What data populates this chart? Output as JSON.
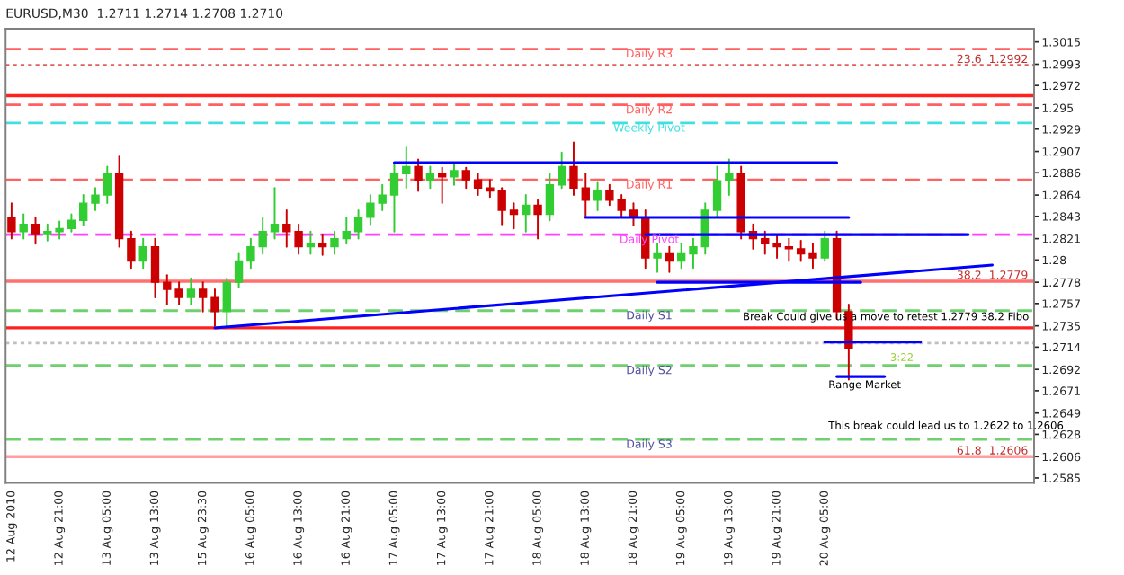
{
  "chart_data": {
    "type": "candlestick",
    "title": "EURUSD,M30  1.2711 1.2714 1.2708 1.2710",
    "categories": [
      "12 Aug 2010",
      null,
      null,
      null,
      "12 Aug 21:00",
      null,
      null,
      null,
      "13 Aug 05:00",
      null,
      null,
      null,
      "13 Aug 13:00",
      null,
      null,
      null,
      "15 Aug 23:30",
      null,
      null,
      null,
      "16 Aug 05:00",
      null,
      null,
      null,
      "16 Aug 13:00",
      null,
      null,
      null,
      "16 Aug 21:00",
      null,
      null,
      null,
      "17 Aug 05:00",
      null,
      null,
      null,
      "17 Aug 13:00",
      null,
      null,
      null,
      "17 Aug 21:00",
      null,
      null,
      null,
      "18 Aug 05:00",
      null,
      null,
      null,
      "18 Aug 13:00",
      null,
      null,
      null,
      "18 Aug 21:00",
      null,
      null,
      null,
      "19 Aug 05:00",
      null,
      null,
      null,
      "19 Aug 13:00",
      null,
      null,
      null,
      "19 Aug 21:00",
      null,
      null,
      null,
      "20 Aug 05:00",
      null,
      null,
      null,
      null,
      null,
      null,
      null,
      null,
      null,
      null,
      null,
      null,
      null,
      null,
      null,
      null,
      null
    ],
    "ohlc": [
      [
        1.2842,
        1.2856,
        1.2821,
        1.2828
      ],
      [
        1.2828,
        1.2845,
        1.2821,
        1.2835
      ],
      [
        1.2835,
        1.2842,
        1.2816,
        1.2825
      ],
      [
        1.2825,
        1.2835,
        1.2819,
        1.2828
      ],
      [
        1.2828,
        1.2838,
        1.2821,
        1.2831
      ],
      [
        1.2831,
        1.2845,
        1.2828,
        1.2839
      ],
      [
        1.2839,
        1.2864,
        1.2834,
        1.2856
      ],
      [
        1.2856,
        1.2871,
        1.2849,
        1.2864
      ],
      [
        1.2864,
        1.2892,
        1.2856,
        1.2885
      ],
      [
        1.2885,
        1.2902,
        1.2813,
        1.2821
      ],
      [
        1.2821,
        1.2828,
        1.2792,
        1.2799
      ],
      [
        1.2799,
        1.2821,
        1.2792,
        1.2813
      ],
      [
        1.2813,
        1.2821,
        1.2763,
        1.2778
      ],
      [
        1.2778,
        1.2785,
        1.2756,
        1.2771
      ],
      [
        1.2771,
        1.2778,
        1.2756,
        1.2763
      ],
      [
        1.2763,
        1.2782,
        1.2756,
        1.2771
      ],
      [
        1.2771,
        1.2778,
        1.2749,
        1.2763
      ],
      [
        1.2763,
        1.2771,
        1.2735,
        1.2749
      ],
      [
        1.2749,
        1.2782,
        1.2735,
        1.2778
      ],
      [
        1.2778,
        1.2806,
        1.2773,
        1.2799
      ],
      [
        1.2799,
        1.2821,
        1.2792,
        1.2813
      ],
      [
        1.2813,
        1.2842,
        1.2806,
        1.2828
      ],
      [
        1.2828,
        1.2871,
        1.2821,
        1.2835
      ],
      [
        1.2835,
        1.2849,
        1.2813,
        1.2828
      ],
      [
        1.2828,
        1.2835,
        1.2806,
        1.2813
      ],
      [
        1.2813,
        1.2828,
        1.2806,
        1.2816
      ],
      [
        1.2816,
        1.2825,
        1.2805,
        1.2813
      ],
      [
        1.2813,
        1.2828,
        1.2806,
        1.2821
      ],
      [
        1.2821,
        1.2842,
        1.2816,
        1.2828
      ],
      [
        1.2828,
        1.2849,
        1.2821,
        1.2842
      ],
      [
        1.2842,
        1.2864,
        1.2835,
        1.2856
      ],
      [
        1.2856,
        1.2874,
        1.2849,
        1.2864
      ],
      [
        1.2864,
        1.2896,
        1.2828,
        1.2885
      ],
      [
        1.2885,
        1.2911,
        1.2871,
        1.2892
      ],
      [
        1.2892,
        1.2899,
        1.2868,
        1.2878
      ],
      [
        1.2878,
        1.2892,
        1.2871,
        1.2885
      ],
      [
        1.2885,
        1.2891,
        1.2856,
        1.2882
      ],
      [
        1.2882,
        1.2894,
        1.2874,
        1.2888
      ],
      [
        1.2888,
        1.2891,
        1.2871,
        1.2879
      ],
      [
        1.2879,
        1.2885,
        1.2864,
        1.2871
      ],
      [
        1.2871,
        1.2879,
        1.2862,
        1.2868
      ],
      [
        1.2868,
        1.2871,
        1.2835,
        1.2849
      ],
      [
        1.2849,
        1.2856,
        1.2831,
        1.2845
      ],
      [
        1.2845,
        1.2864,
        1.2828,
        1.2854
      ],
      [
        1.2854,
        1.2859,
        1.2821,
        1.2845
      ],
      [
        1.2845,
        1.2885,
        1.2839,
        1.2874
      ],
      [
        1.2874,
        1.2906,
        1.2871,
        1.2892
      ],
      [
        1.2892,
        1.2916,
        1.2864,
        1.2871
      ],
      [
        1.2871,
        1.2885,
        1.2842,
        1.2859
      ],
      [
        1.2859,
        1.2876,
        1.2849,
        1.2868
      ],
      [
        1.2868,
        1.2874,
        1.2854,
        1.2859
      ],
      [
        1.2859,
        1.2864,
        1.2842,
        1.2849
      ],
      [
        1.2849,
        1.2856,
        1.2834,
        1.2842
      ],
      [
        1.2842,
        1.2849,
        1.2792,
        1.2802
      ],
      [
        1.2802,
        1.2816,
        1.2788,
        1.2806
      ],
      [
        1.2806,
        1.2813,
        1.2788,
        1.2799
      ],
      [
        1.2799,
        1.2816,
        1.2792,
        1.2806
      ],
      [
        1.2806,
        1.2821,
        1.2792,
        1.2813
      ],
      [
        1.2813,
        1.2856,
        1.2806,
        1.2849
      ],
      [
        1.2849,
        1.2892,
        1.2842,
        1.2878
      ],
      [
        1.2878,
        1.2899,
        1.2864,
        1.2885
      ],
      [
        1.2885,
        1.2892,
        1.2821,
        1.2828
      ],
      [
        1.2828,
        1.2835,
        1.2811,
        1.2821
      ],
      [
        1.2821,
        1.2828,
        1.2806,
        1.2816
      ],
      [
        1.2816,
        1.2825,
        1.2802,
        1.2813
      ],
      [
        1.2813,
        1.2821,
        1.2799,
        1.2811
      ],
      [
        1.2811,
        1.2819,
        1.2799,
        1.2806
      ],
      [
        1.2806,
        1.2816,
        1.2792,
        1.2802
      ],
      [
        1.2802,
        1.2828,
        1.2799,
        1.2821
      ],
      [
        1.2821,
        1.2828,
        1.2742,
        1.2749
      ],
      [
        1.2749,
        1.2756,
        1.2682,
        1.2713
      ],
      null,
      null,
      null,
      null,
      null,
      null,
      null,
      null,
      null,
      null,
      null,
      null,
      null,
      null,
      null
    ],
    "colors": [
      "#cc0000",
      "#32cd32",
      "#cc0000",
      "#32cd32",
      "#32cd32",
      "#32cd32",
      "#32cd32",
      "#32cd32",
      "#32cd32",
      "#cc0000",
      "#cc0000",
      "#32cd32",
      "#cc0000",
      "#cc0000",
      "#cc0000",
      "#32cd32",
      "#cc0000",
      "#cc0000",
      "#32cd32",
      "#32cd32",
      "#32cd32",
      "#32cd32",
      "#32cd32",
      "#cc0000",
      "#cc0000",
      "#32cd32",
      "#cc0000",
      "#32cd32",
      "#32cd32",
      "#32cd32",
      "#32cd32",
      "#32cd32",
      "#32cd32",
      "#32cd32",
      "#cc0000",
      "#32cd32",
      "#cc0000",
      "#32cd32",
      "#cc0000",
      "#cc0000",
      "#cc0000",
      "#cc0000",
      "#cc0000",
      "#32cd32",
      "#cc0000",
      "#32cd32",
      "#32cd32",
      "#cc0000",
      "#cc0000",
      "#32cd32",
      "#cc0000",
      "#cc0000",
      "#cc0000",
      "#cc0000",
      "#32cd32",
      "#cc0000",
      "#32cd32",
      "#32cd32",
      "#32cd32",
      "#32cd32",
      "#32cd32",
      "#cc0000",
      "#cc0000",
      "#cc0000",
      "#cc0000",
      "#cc0000",
      "#cc0000",
      "#cc0000",
      "#32cd32",
      "#cc0000",
      "#cc0000",
      null,
      null,
      null,
      null,
      null,
      null,
      null,
      null,
      null,
      null,
      null,
      null,
      null,
      null,
      null
    ],
    "series": [
      {
        "type": "line",
        "color": "#0000ff",
        "values": [
          null,
          null,
          null,
          null,
          null,
          null,
          null,
          null,
          null,
          null,
          null,
          null,
          null,
          null,
          null,
          null,
          null,
          null,
          null,
          null,
          null,
          null,
          null,
          null,
          null,
          null,
          null,
          null,
          null,
          null,
          null,
          null,
          1.2896,
          null,
          null,
          null,
          null,
          null,
          null,
          null,
          null,
          null,
          null,
          null,
          null,
          null,
          null,
          null,
          null,
          null,
          null,
          null,
          null,
          null,
          null,
          null,
          null,
          null,
          null,
          null,
          null,
          null,
          null,
          null,
          null,
          null,
          null,
          null,
          null,
          1.2896,
          null,
          null,
          null,
          null,
          null,
          null,
          null,
          null,
          null,
          null,
          null,
          null,
          null,
          null,
          null,
          null
        ]
      },
      {
        "type": "line",
        "color": "#0000ff",
        "values": [
          null,
          null,
          null,
          null,
          null,
          null,
          null,
          null,
          null,
          null,
          null,
          null,
          null,
          null,
          null,
          null,
          null,
          null,
          null,
          null,
          null,
          null,
          null,
          null,
          null,
          null,
          null,
          null,
          null,
          null,
          null,
          null,
          null,
          null,
          null,
          null,
          null,
          null,
          null,
          null,
          null,
          null,
          null,
          null,
          null,
          null,
          null,
          null,
          1.2842,
          null,
          null,
          null,
          null,
          null,
          null,
          null,
          null,
          null,
          null,
          null,
          null,
          null,
          null,
          null,
          null,
          null,
          null,
          null,
          null,
          null,
          1.2842,
          null,
          null,
          null,
          null,
          null,
          null,
          null,
          null,
          null,
          null,
          null,
          null,
          null,
          null,
          null
        ]
      },
      {
        "type": "line",
        "color": "#0000ff",
        "values": [
          null,
          null,
          null,
          null,
          null,
          null,
          null,
          null,
          null,
          null,
          null,
          null,
          null,
          null,
          null,
          null,
          null,
          null,
          null,
          null,
          null,
          null,
          null,
          null,
          null,
          null,
          null,
          null,
          null,
          null,
          null,
          null,
          null,
          null,
          null,
          null,
          null,
          null,
          null,
          null,
          null,
          null,
          null,
          null,
          null,
          null,
          null,
          null,
          null,
          null,
          null,
          null,
          null,
          1.2825,
          null,
          null,
          null,
          null,
          null,
          null,
          null,
          null,
          null,
          null,
          null,
          null,
          null,
          null,
          null,
          null,
          null,
          null,
          null,
          null,
          null,
          null,
          null,
          null,
          null,
          null,
          1.2825,
          null,
          null,
          null,
          null,
          null
        ]
      },
      {
        "type": "line",
        "color": "#0000ff",
        "values": [
          null,
          null,
          null,
          null,
          null,
          null,
          null,
          null,
          null,
          null,
          null,
          null,
          null,
          null,
          null,
          null,
          null,
          null,
          null,
          null,
          null,
          null,
          null,
          null,
          null,
          null,
          null,
          null,
          null,
          null,
          null,
          null,
          null,
          null,
          null,
          null,
          null,
          null,
          null,
          null,
          null,
          null,
          null,
          null,
          null,
          null,
          null,
          null,
          null,
          null,
          null,
          null,
          null,
          null,
          1.2778,
          null,
          null,
          null,
          null,
          null,
          null,
          null,
          null,
          null,
          null,
          null,
          null,
          null,
          null,
          null,
          null,
          1.2778,
          null,
          null,
          null,
          null,
          null,
          null,
          null,
          null,
          null,
          null,
          null,
          null,
          null,
          null
        ]
      },
      {
        "type": "line",
        "color": "#0000ff",
        "values": [
          null,
          null,
          null,
          null,
          null,
          null,
          null,
          null,
          null,
          null,
          null,
          null,
          null,
          null,
          null,
          null,
          null,
          null,
          null,
          null,
          null,
          null,
          null,
          null,
          null,
          null,
          null,
          null,
          null,
          null,
          null,
          null,
          null,
          null,
          null,
          null,
          null,
          null,
          null,
          null,
          null,
          null,
          null,
          null,
          null,
          null,
          null,
          null,
          null,
          null,
          null,
          null,
          null,
          null,
          null,
          null,
          null,
          null,
          null,
          null,
          null,
          null,
          null,
          null,
          null,
          null,
          null,
          null,
          1.2719,
          null,
          null,
          null,
          null,
          null,
          null,
          null,
          1.2719,
          null,
          null,
          null,
          null,
          null,
          null,
          null,
          null,
          null
        ]
      },
      {
        "type": "line",
        "color": "#0000ff",
        "values": [
          null,
          null,
          null,
          null,
          null,
          null,
          null,
          null,
          null,
          null,
          null,
          null,
          null,
          null,
          null,
          null,
          null,
          null,
          null,
          null,
          null,
          null,
          null,
          null,
          null,
          null,
          null,
          null,
          null,
          null,
          null,
          null,
          null,
          null,
          null,
          null,
          null,
          null,
          null,
          null,
          null,
          null,
          null,
          null,
          null,
          null,
          null,
          null,
          null,
          null,
          null,
          null,
          null,
          null,
          null,
          null,
          null,
          null,
          null,
          null,
          null,
          null,
          null,
          null,
          null,
          null,
          null,
          null,
          null,
          1.2685,
          null,
          null,
          null,
          1.2685,
          null,
          null,
          null,
          null,
          null,
          null,
          null,
          null,
          null,
          null,
          null,
          null
        ]
      },
      {
        "type": "line",
        "color": "#0000ff",
        "values": [
          null,
          null,
          null,
          null,
          null,
          null,
          null,
          null,
          null,
          null,
          null,
          null,
          null,
          null,
          null,
          null,
          null,
          1.2733,
          null,
          null,
          null,
          null,
          null,
          null,
          null,
          null,
          null,
          null,
          null,
          null,
          null,
          null,
          null,
          null,
          null,
          null,
          null,
          null,
          null,
          null,
          null,
          null,
          null,
          null,
          null,
          null,
          null,
          null,
          null,
          null,
          null,
          null,
          null,
          null,
          null,
          null,
          null,
          null,
          null,
          null,
          null,
          null,
          null,
          null,
          null,
          null,
          null,
          null,
          null,
          null,
          null,
          null,
          null,
          null,
          null,
          null,
          null,
          null,
          null,
          null,
          null,
          null,
          1.2795,
          null,
          null,
          null
        ]
      }
    ],
    "ref_lines": [
      {
        "axis": "y",
        "value": 1.3008,
        "label": "Daily R3",
        "color": "#ff6060",
        "line_style": "dashed"
      },
      {
        "axis": "y",
        "value": 1.2992,
        "label": "23.6  1.2992",
        "color": "#e06060",
        "line_style": "dotted"
      },
      {
        "axis": "y",
        "value": 1.2962,
        "label": null,
        "color": "#ff2020",
        "line_style": "solid"
      },
      {
        "axis": "y",
        "value": 1.2953,
        "label": "Daily R2",
        "color": "#ff6060",
        "line_style": "dashed"
      },
      {
        "axis": "y",
        "value": 1.2935,
        "label": "Weekly Pivot",
        "color": "#40e0e0",
        "line_style": "dashed"
      },
      {
        "axis": "y",
        "value": 1.2879,
        "label": "Daily R1",
        "color": "#ff6060",
        "line_style": "dashed"
      },
      {
        "axis": "y",
        "value": 1.2825,
        "label": "Daily Pivot",
        "color": "#ff40ff",
        "line_style": "dashed"
      },
      {
        "axis": "y",
        "value": 1.2779,
        "label": "38.2  1.2779",
        "color": "#ff7070",
        "line_style": "solid"
      },
      {
        "axis": "y",
        "value": 1.275,
        "label": "Daily S1",
        "color": "#70d070",
        "line_style": "dashed"
      },
      {
        "axis": "y",
        "value": 1.2733,
        "label": null,
        "color": "#ff2020",
        "line_style": "solid"
      },
      {
        "axis": "y",
        "value": 1.2718,
        "label": null,
        "color": "#c0c0c0",
        "line_style": "dotted"
      },
      {
        "axis": "y",
        "value": 1.2696,
        "label": "Daily S2",
        "color": "#70d070",
        "line_style": "dashed"
      },
      {
        "axis": "y",
        "value": 1.2623,
        "label": "Daily S3",
        "color": "#70d070",
        "line_style": "dashed"
      },
      {
        "axis": "y",
        "value": 1.2606,
        "label": "61.8  1.2606",
        "color": "#ffa0a0",
        "line_style": "solid"
      }
    ],
    "annotations": [
      "Break Could give us a move to retest 1.2779 38.2 Fibo",
      "3:22",
      "Range Market",
      "This break could lead us to 1.2622 to 1.2606"
    ],
    "ylim": [
      1.258,
      1.3028
    ],
    "yticks": [
      1.2585,
      1.2606,
      1.2628,
      1.2649,
      1.2671,
      1.2692,
      1.2714,
      1.2735,
      1.2757,
      1.2778,
      1.28,
      1.2821,
      1.2843,
      1.2864,
      1.2886,
      1.2907,
      1.2929,
      1.295,
      1.2972,
      1.2993,
      1.3015
    ],
    "grid": false,
    "legend": false
  }
}
